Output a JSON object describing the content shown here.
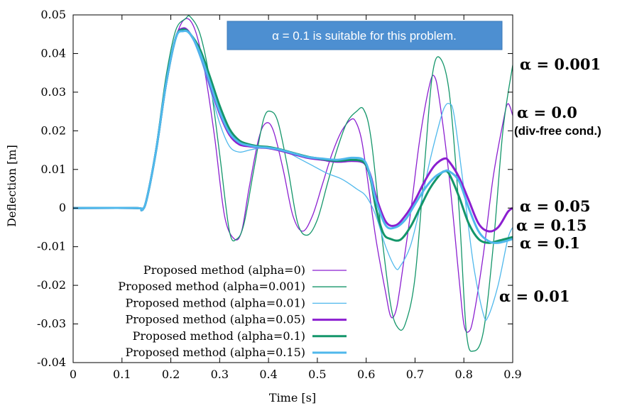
{
  "chart_data": {
    "type": "line",
    "xlabel": "Time [s]",
    "ylabel": "Deflection [m]",
    "xlim": [
      0,
      0.9
    ],
    "ylim": [
      -0.04,
      0.05
    ],
    "xticks": [
      0,
      0.1,
      0.2,
      0.3,
      0.4,
      0.5,
      0.6,
      0.7,
      0.8,
      0.9
    ],
    "xtick_labels": [
      "0",
      "0.1",
      "0.2",
      "0.3",
      "0.4",
      "0.5",
      "0.6",
      "0.7",
      "0.8",
      "0.9"
    ],
    "yticks": [
      -0.04,
      -0.03,
      -0.02,
      -0.01,
      0,
      0.01,
      0.02,
      0.03,
      0.04,
      0.05
    ],
    "ytick_labels": [
      "-0.04",
      "-0.03",
      "-0.02",
      "-0.01",
      "0",
      "0.01",
      "0.02",
      "0.03",
      "0.04",
      "0.05"
    ],
    "grid": false,
    "legend_position": "bottom-left",
    "series": [
      {
        "name": "Proposed method (alpha=0)",
        "color": "#8b1fd0",
        "width": "thin",
        "x": [
          0,
          0.13,
          0.14,
          0.15,
          0.17,
          0.19,
          0.21,
          0.23,
          0.25,
          0.27,
          0.29,
          0.31,
          0.33,
          0.345,
          0.36,
          0.38,
          0.395,
          0.41,
          0.43,
          0.45,
          0.47,
          0.49,
          0.51,
          0.53,
          0.55,
          0.57,
          0.58,
          0.59,
          0.6,
          0.62,
          0.64,
          0.65,
          0.66,
          0.67,
          0.69,
          0.71,
          0.73,
          0.74,
          0.75,
          0.77,
          0.79,
          0.8,
          0.81,
          0.82,
          0.84,
          0.86,
          0.88,
          0.89,
          0.9
        ],
        "y": [
          0,
          0,
          -0.0005,
          0.002,
          0.015,
          0.032,
          0.044,
          0.049,
          0.046,
          0.035,
          0.018,
          -0.002,
          -0.008,
          -0.006,
          0.005,
          0.018,
          0.022,
          0.02,
          0.01,
          -0.002,
          -0.006,
          -0.002,
          0.006,
          0.014,
          0.02,
          0.023,
          0.022,
          0.018,
          0.01,
          -0.008,
          -0.022,
          -0.028,
          -0.027,
          -0.02,
          -0.002,
          0.018,
          0.032,
          0.034,
          0.028,
          0.008,
          -0.018,
          -0.03,
          -0.032,
          -0.028,
          -0.012,
          0.008,
          0.022,
          0.027,
          0.024
        ]
      },
      {
        "name": "Proposed method (alpha=0.001)",
        "color": "#14966a",
        "width": "thin",
        "x": [
          0,
          0.13,
          0.14,
          0.15,
          0.17,
          0.19,
          0.21,
          0.23,
          0.24,
          0.26,
          0.28,
          0.3,
          0.32,
          0.335,
          0.35,
          0.37,
          0.39,
          0.405,
          0.42,
          0.44,
          0.46,
          0.48,
          0.5,
          0.52,
          0.54,
          0.56,
          0.58,
          0.595,
          0.61,
          0.63,
          0.65,
          0.665,
          0.68,
          0.7,
          0.72,
          0.735,
          0.75,
          0.77,
          0.79,
          0.805,
          0.82,
          0.84,
          0.86,
          0.88,
          0.9
        ],
        "y": [
          0,
          0,
          -0.0005,
          0.002,
          0.016,
          0.034,
          0.046,
          0.049,
          0.0495,
          0.045,
          0.033,
          0.014,
          -0.006,
          -0.008,
          -0.004,
          0.01,
          0.023,
          0.025,
          0.022,
          0.01,
          -0.004,
          -0.007,
          -0.003,
          0.006,
          0.015,
          0.022,
          0.025,
          0.0255,
          0.018,
          -0.005,
          -0.025,
          -0.031,
          -0.03,
          -0.018,
          0.012,
          0.034,
          0.039,
          0.03,
          0.0,
          -0.032,
          -0.037,
          -0.032,
          -0.01,
          0.02,
          0.037
        ]
      },
      {
        "name": "Proposed method (alpha=0.01)",
        "color": "#4fb8ec",
        "width": "thin",
        "x": [
          0,
          0.13,
          0.14,
          0.15,
          0.17,
          0.19,
          0.21,
          0.225,
          0.24,
          0.26,
          0.28,
          0.3,
          0.32,
          0.34,
          0.36,
          0.38,
          0.4,
          0.43,
          0.46,
          0.49,
          0.52,
          0.55,
          0.58,
          0.6,
          0.62,
          0.64,
          0.66,
          0.67,
          0.69,
          0.71,
          0.73,
          0.75,
          0.76,
          0.77,
          0.78,
          0.8,
          0.82,
          0.84,
          0.85,
          0.87,
          0.89,
          0.9
        ],
        "y": [
          0,
          0,
          -0.0005,
          0.002,
          0.015,
          0.032,
          0.044,
          0.046,
          0.045,
          0.039,
          0.031,
          0.022,
          0.016,
          0.0145,
          0.015,
          0.0155,
          0.0158,
          0.015,
          0.013,
          0.011,
          0.009,
          0.0075,
          0.005,
          0.003,
          -0.002,
          -0.01,
          -0.0155,
          -0.015,
          -0.01,
          0.0,
          0.012,
          0.022,
          0.026,
          0.027,
          0.024,
          0.005,
          -0.015,
          -0.0275,
          -0.028,
          -0.02,
          -0.008,
          -0.005
        ]
      },
      {
        "name": "Proposed method (alpha=0.05)",
        "color": "#8b1fd0",
        "width": "thick",
        "x": [
          0,
          0.13,
          0.14,
          0.15,
          0.17,
          0.19,
          0.21,
          0.225,
          0.24,
          0.26,
          0.28,
          0.3,
          0.32,
          0.34,
          0.36,
          0.38,
          0.4,
          0.42,
          0.45,
          0.48,
          0.51,
          0.54,
          0.57,
          0.59,
          0.6,
          0.61,
          0.62,
          0.64,
          0.66,
          0.68,
          0.7,
          0.72,
          0.74,
          0.76,
          0.77,
          0.79,
          0.81,
          0.83,
          0.85,
          0.87,
          0.89,
          0.9
        ],
        "y": [
          0,
          0,
          -0.0005,
          0.002,
          0.015,
          0.032,
          0.044,
          0.0465,
          0.045,
          0.04,
          0.032,
          0.0245,
          0.019,
          0.0165,
          0.016,
          0.0157,
          0.0155,
          0.015,
          0.014,
          0.013,
          0.0125,
          0.012,
          0.0122,
          0.012,
          0.011,
          0.008,
          0.003,
          -0.0035,
          -0.0045,
          -0.002,
          0.002,
          0.007,
          0.011,
          0.0128,
          0.012,
          0.008,
          0.002,
          -0.004,
          -0.006,
          -0.005,
          -0.001,
          0.0
        ]
      },
      {
        "name": "Proposed method (alpha=0.1)",
        "color": "#14966a",
        "width": "thick",
        "x": [
          0,
          0.13,
          0.14,
          0.15,
          0.17,
          0.19,
          0.21,
          0.225,
          0.24,
          0.26,
          0.28,
          0.3,
          0.32,
          0.34,
          0.36,
          0.38,
          0.4,
          0.42,
          0.45,
          0.48,
          0.51,
          0.54,
          0.57,
          0.59,
          0.6,
          0.61,
          0.62,
          0.635,
          0.65,
          0.67,
          0.69,
          0.71,
          0.73,
          0.75,
          0.76,
          0.77,
          0.79,
          0.81,
          0.83,
          0.85,
          0.87,
          0.9
        ],
        "y": [
          0,
          0,
          -0.0005,
          0.002,
          0.015,
          0.032,
          0.044,
          0.0462,
          0.045,
          0.041,
          0.034,
          0.0265,
          0.0205,
          0.0175,
          0.0165,
          0.016,
          0.0158,
          0.0153,
          0.0143,
          0.0133,
          0.0127,
          0.0122,
          0.0125,
          0.0122,
          0.011,
          0.007,
          0.0,
          -0.0065,
          -0.008,
          -0.0082,
          -0.005,
          0.0,
          0.005,
          0.0085,
          0.0095,
          0.0088,
          0.003,
          -0.004,
          -0.008,
          -0.009,
          -0.0085,
          -0.0075
        ]
      },
      {
        "name": "Proposed method (alpha=0.15)",
        "color": "#4fb8ec",
        "width": "thick",
        "x": [
          0,
          0.13,
          0.14,
          0.15,
          0.17,
          0.19,
          0.21,
          0.225,
          0.24,
          0.26,
          0.28,
          0.3,
          0.32,
          0.34,
          0.36,
          0.38,
          0.4,
          0.42,
          0.45,
          0.48,
          0.51,
          0.54,
          0.57,
          0.59,
          0.6,
          0.61,
          0.62,
          0.64,
          0.66,
          0.68,
          0.7,
          0.72,
          0.74,
          0.76,
          0.77,
          0.79,
          0.81,
          0.83,
          0.85,
          0.87,
          0.9
        ],
        "y": [
          0,
          0,
          -0.0005,
          0.002,
          0.015,
          0.032,
          0.044,
          0.0458,
          0.045,
          0.04,
          0.0325,
          0.025,
          0.0195,
          0.017,
          0.0162,
          0.0158,
          0.0156,
          0.0152,
          0.0142,
          0.0132,
          0.0128,
          0.0125,
          0.013,
          0.0128,
          0.0115,
          0.0075,
          0.002,
          -0.0045,
          -0.005,
          -0.003,
          0.001,
          0.005,
          0.008,
          0.0095,
          0.0095,
          0.007,
          0.0,
          -0.006,
          -0.0085,
          -0.009,
          -0.008
        ]
      }
    ],
    "callout": {
      "text": "α = 0.1 is suitable for this problem.",
      "background": "#4d8fd1"
    },
    "annotations": [
      {
        "text": "α = 0.001"
      },
      {
        "text": "α = 0.0"
      },
      {
        "text": "(div-free cond.)"
      },
      {
        "text": "α = 0.05"
      },
      {
        "text": "α = 0.15"
      },
      {
        "text": "α = 0.1"
      },
      {
        "text": "α = 0.01"
      }
    ]
  }
}
